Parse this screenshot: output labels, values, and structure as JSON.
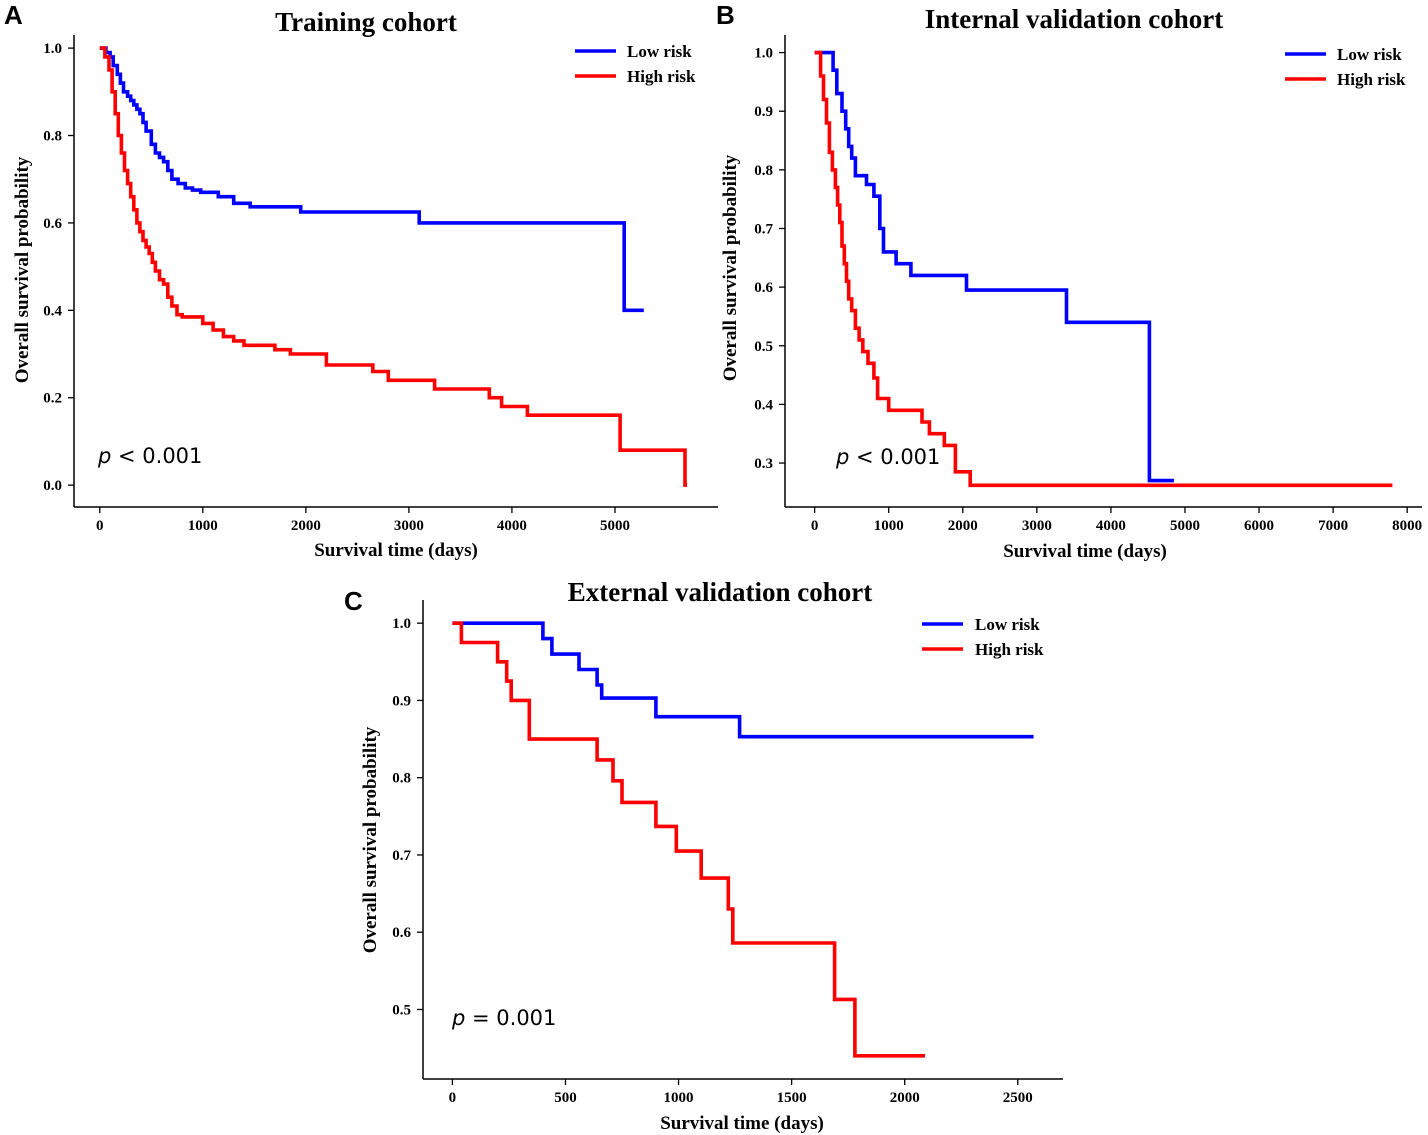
{
  "figure": {
    "panels": [
      "A",
      "B",
      "C"
    ]
  },
  "colors": {
    "low_risk": "#0000ff",
    "high_risk": "#ff0000",
    "axis": "#000000"
  },
  "chart_data": [
    {
      "panel": "A",
      "type": "line",
      "step": true,
      "title": "Training cohort",
      "xlabel": "Survival time (days)",
      "ylabel": "Overall survival probability",
      "xlim": [
        -250,
        6000
      ],
      "ylim": [
        -0.05,
        1.03
      ],
      "xticks": [
        0,
        1000,
        2000,
        3000,
        4000,
        5000
      ],
      "yticks": [
        0.0,
        0.2,
        0.4,
        0.6,
        0.8,
        1.0
      ],
      "ytick_format": 1,
      "legend": "top-right",
      "annotation": {
        "p": "p",
        "rest": " < 0.001"
      },
      "series": [
        {
          "name": "Low risk",
          "color_key": "low_risk",
          "x": [
            0,
            60,
            100,
            130,
            170,
            200,
            230,
            270,
            300,
            330,
            360,
            390,
            420,
            450,
            500,
            540,
            580,
            620,
            660,
            700,
            760,
            830,
            900,
            980,
            1150,
            1300,
            1460,
            1950,
            3100,
            5090,
            5280
          ],
          "y": [
            1.0,
            0.99,
            0.98,
            0.96,
            0.94,
            0.92,
            0.9,
            0.89,
            0.88,
            0.87,
            0.86,
            0.85,
            0.83,
            0.81,
            0.78,
            0.76,
            0.75,
            0.74,
            0.72,
            0.7,
            0.69,
            0.68,
            0.675,
            0.67,
            0.66,
            0.645,
            0.637,
            0.625,
            0.6,
            0.4,
            0.4
          ]
        },
        {
          "name": "High risk",
          "color_key": "high_risk",
          "x": [
            0,
            50,
            90,
            120,
            150,
            180,
            210,
            240,
            270,
            300,
            330,
            360,
            390,
            420,
            450,
            480,
            510,
            540,
            580,
            620,
            660,
            700,
            750,
            800,
            1000,
            1100,
            1200,
            1300,
            1400,
            1700,
            1850,
            2200,
            2650,
            2800,
            3250,
            3780,
            3900,
            4150,
            5050,
            5680,
            5700
          ],
          "y": [
            1.0,
            0.98,
            0.95,
            0.9,
            0.85,
            0.8,
            0.76,
            0.72,
            0.69,
            0.66,
            0.63,
            0.6,
            0.58,
            0.56,
            0.545,
            0.53,
            0.51,
            0.49,
            0.47,
            0.46,
            0.43,
            0.41,
            0.39,
            0.385,
            0.37,
            0.355,
            0.34,
            0.33,
            0.32,
            0.31,
            0.3,
            0.275,
            0.26,
            0.24,
            0.22,
            0.2,
            0.18,
            0.16,
            0.08,
            0.0,
            0.0
          ]
        }
      ]
    },
    {
      "panel": "B",
      "type": "line",
      "step": true,
      "title": "Internal validation cohort",
      "xlabel": "Survival time (days)",
      "ylabel": "Overall survival probability",
      "xlim": [
        -400,
        8200
      ],
      "ylim": [
        0.225,
        1.03
      ],
      "xticks": [
        0,
        1000,
        2000,
        3000,
        4000,
        5000,
        6000,
        7000,
        8000
      ],
      "yticks": [
        0.3,
        0.4,
        0.5,
        0.6,
        0.7,
        0.8,
        0.9,
        1.0
      ],
      "ytick_format": 1,
      "legend": "top-right",
      "annotation": {
        "p": "p",
        "rest": " < 0.001"
      },
      "series": [
        {
          "name": "Low risk",
          "color_key": "low_risk",
          "x": [
            0,
            250,
            300,
            370,
            420,
            460,
            500,
            550,
            700,
            800,
            880,
            930,
            1100,
            1300,
            2050,
            3400,
            4520,
            4850
          ],
          "y": [
            1.0,
            0.97,
            0.93,
            0.9,
            0.87,
            0.84,
            0.82,
            0.79,
            0.775,
            0.755,
            0.7,
            0.66,
            0.64,
            0.62,
            0.595,
            0.54,
            0.27,
            0.27
          ]
        },
        {
          "name": "High risk",
          "color_key": "high_risk",
          "x": [
            0,
            80,
            120,
            160,
            200,
            240,
            280,
            310,
            340,
            370,
            400,
            430,
            460,
            500,
            550,
            600,
            650,
            720,
            800,
            850,
            1000,
            1450,
            1550,
            1750,
            1900,
            2100,
            7800
          ],
          "y": [
            1.0,
            0.96,
            0.92,
            0.88,
            0.83,
            0.8,
            0.77,
            0.74,
            0.71,
            0.67,
            0.64,
            0.61,
            0.58,
            0.56,
            0.53,
            0.51,
            0.49,
            0.47,
            0.445,
            0.41,
            0.39,
            0.37,
            0.35,
            0.33,
            0.285,
            0.262,
            0.262
          ]
        }
      ]
    },
    {
      "panel": "C",
      "type": "line",
      "step": true,
      "title": "External validation cohort",
      "xlabel": "Survival time (days)",
      "ylabel": "Overall survival probability",
      "xlim": [
        -130,
        2700
      ],
      "ylim": [
        0.41,
        1.03
      ],
      "xticks": [
        0,
        500,
        1000,
        1500,
        2000,
        2500
      ],
      "yticks": [
        0.5,
        0.6,
        0.7,
        0.8,
        0.9,
        1.0
      ],
      "ytick_format": 1,
      "legend": "top-right",
      "annotation": {
        "p": "p",
        "rest": " = 0.001"
      },
      "series": [
        {
          "name": "Low risk",
          "color_key": "low_risk",
          "x": [
            0,
            400,
            440,
            560,
            640,
            660,
            900,
            1270,
            2570
          ],
          "y": [
            1.0,
            0.98,
            0.96,
            0.94,
            0.92,
            0.903,
            0.879,
            0.853,
            0.853
          ]
        },
        {
          "name": "High risk",
          "color_key": "high_risk",
          "x": [
            0,
            40,
            200,
            240,
            260,
            340,
            640,
            710,
            750,
            900,
            990,
            1100,
            1220,
            1240,
            1690,
            1780,
            2090
          ],
          "y": [
            1.0,
            0.975,
            0.95,
            0.925,
            0.9,
            0.85,
            0.823,
            0.796,
            0.768,
            0.737,
            0.705,
            0.67,
            0.63,
            0.586,
            0.513,
            0.44,
            0.44
          ]
        }
      ]
    }
  ]
}
